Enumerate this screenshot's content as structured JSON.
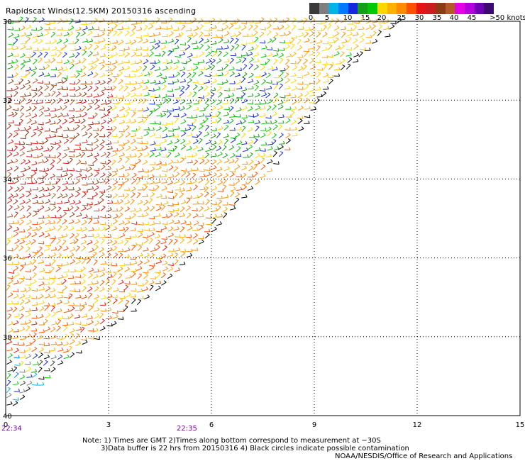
{
  "title": "Rapidscat Winds(12.5KM) 20150316 ascending",
  "colorbar": {
    "tick_labels": [
      "0",
      "5",
      "10",
      "15",
      "20",
      "25",
      "30",
      "35",
      "40",
      "45",
      ">50 knots"
    ],
    "colors": [
      "#3a3a3a",
      "#7f7f7f",
      "#00b4e8",
      "#0078ff",
      "#1428dc",
      "#14a014",
      "#00c800",
      "#ffd700",
      "#ffb000",
      "#ff8c00",
      "#ff5000",
      "#e61414",
      "#c81e1e",
      "#8c3c14",
      "#b45a28",
      "#e600e6",
      "#b400dc",
      "#6e00b4",
      "#3c0a6e"
    ]
  },
  "chart_data": {
    "type": "scatter",
    "title": "Rapidscat Winds(12.5KM) 20150316 ascending",
    "xlabel": "",
    "ylabel": "",
    "xlim": [
      0,
      15
    ],
    "ylim": [
      -30,
      -40
    ],
    "x_ticks": [
      "0",
      "3",
      "6",
      "9",
      "12",
      "15"
    ],
    "y_ticks": [
      "30",
      "32",
      "34",
      "36",
      "38",
      "40"
    ],
    "grid": true,
    "swath_edge": [
      [
        0,
        -39.9
      ],
      [
        2.5,
        -38.1
      ],
      [
        4.5,
        -36.8
      ],
      [
        6,
        -35.4
      ],
      [
        8,
        -33.5
      ],
      [
        9.5,
        -31.6
      ],
      [
        11.5,
        -30.0
      ]
    ],
    "wind_regions": [
      {
        "name": "northwest",
        "x_range": [
          0,
          2.5
        ],
        "y_range": [
          -30,
          -31.5
        ],
        "speed_knots": [
          10,
          25
        ]
      },
      {
        "name": "west",
        "x_range": [
          0,
          3
        ],
        "y_range": [
          -31.5,
          -35
        ],
        "speed_knots": [
          30,
          40
        ]
      },
      {
        "name": "center",
        "x_range": [
          4,
          8
        ],
        "y_range": [
          -30.5,
          -33.5
        ],
        "speed_knots": [
          10,
          20
        ]
      },
      {
        "name": "south",
        "x_range": [
          0,
          5
        ],
        "y_range": [
          -35,
          -38.5
        ],
        "speed_knots": [
          20,
          30
        ]
      },
      {
        "name": "southwest",
        "x_range": [
          0,
          2
        ],
        "y_range": [
          -38.5,
          -40
        ],
        "speed_knots": [
          0,
          20
        ]
      }
    ],
    "time_labels": [
      {
        "x": 0,
        "text": "22:34"
      },
      {
        "x": 5.2,
        "text": "22:35"
      }
    ]
  },
  "notes": {
    "line1": "Note: 1) Times are GMT 2)Times along bottom correspond to measurement at −30S",
    "line2": "3)Data buffer is 22 hrs from 20150316 4) Black circles indicate possible contamination",
    "line3": "NOAA/NESDIS/Office of Research and Applications"
  }
}
